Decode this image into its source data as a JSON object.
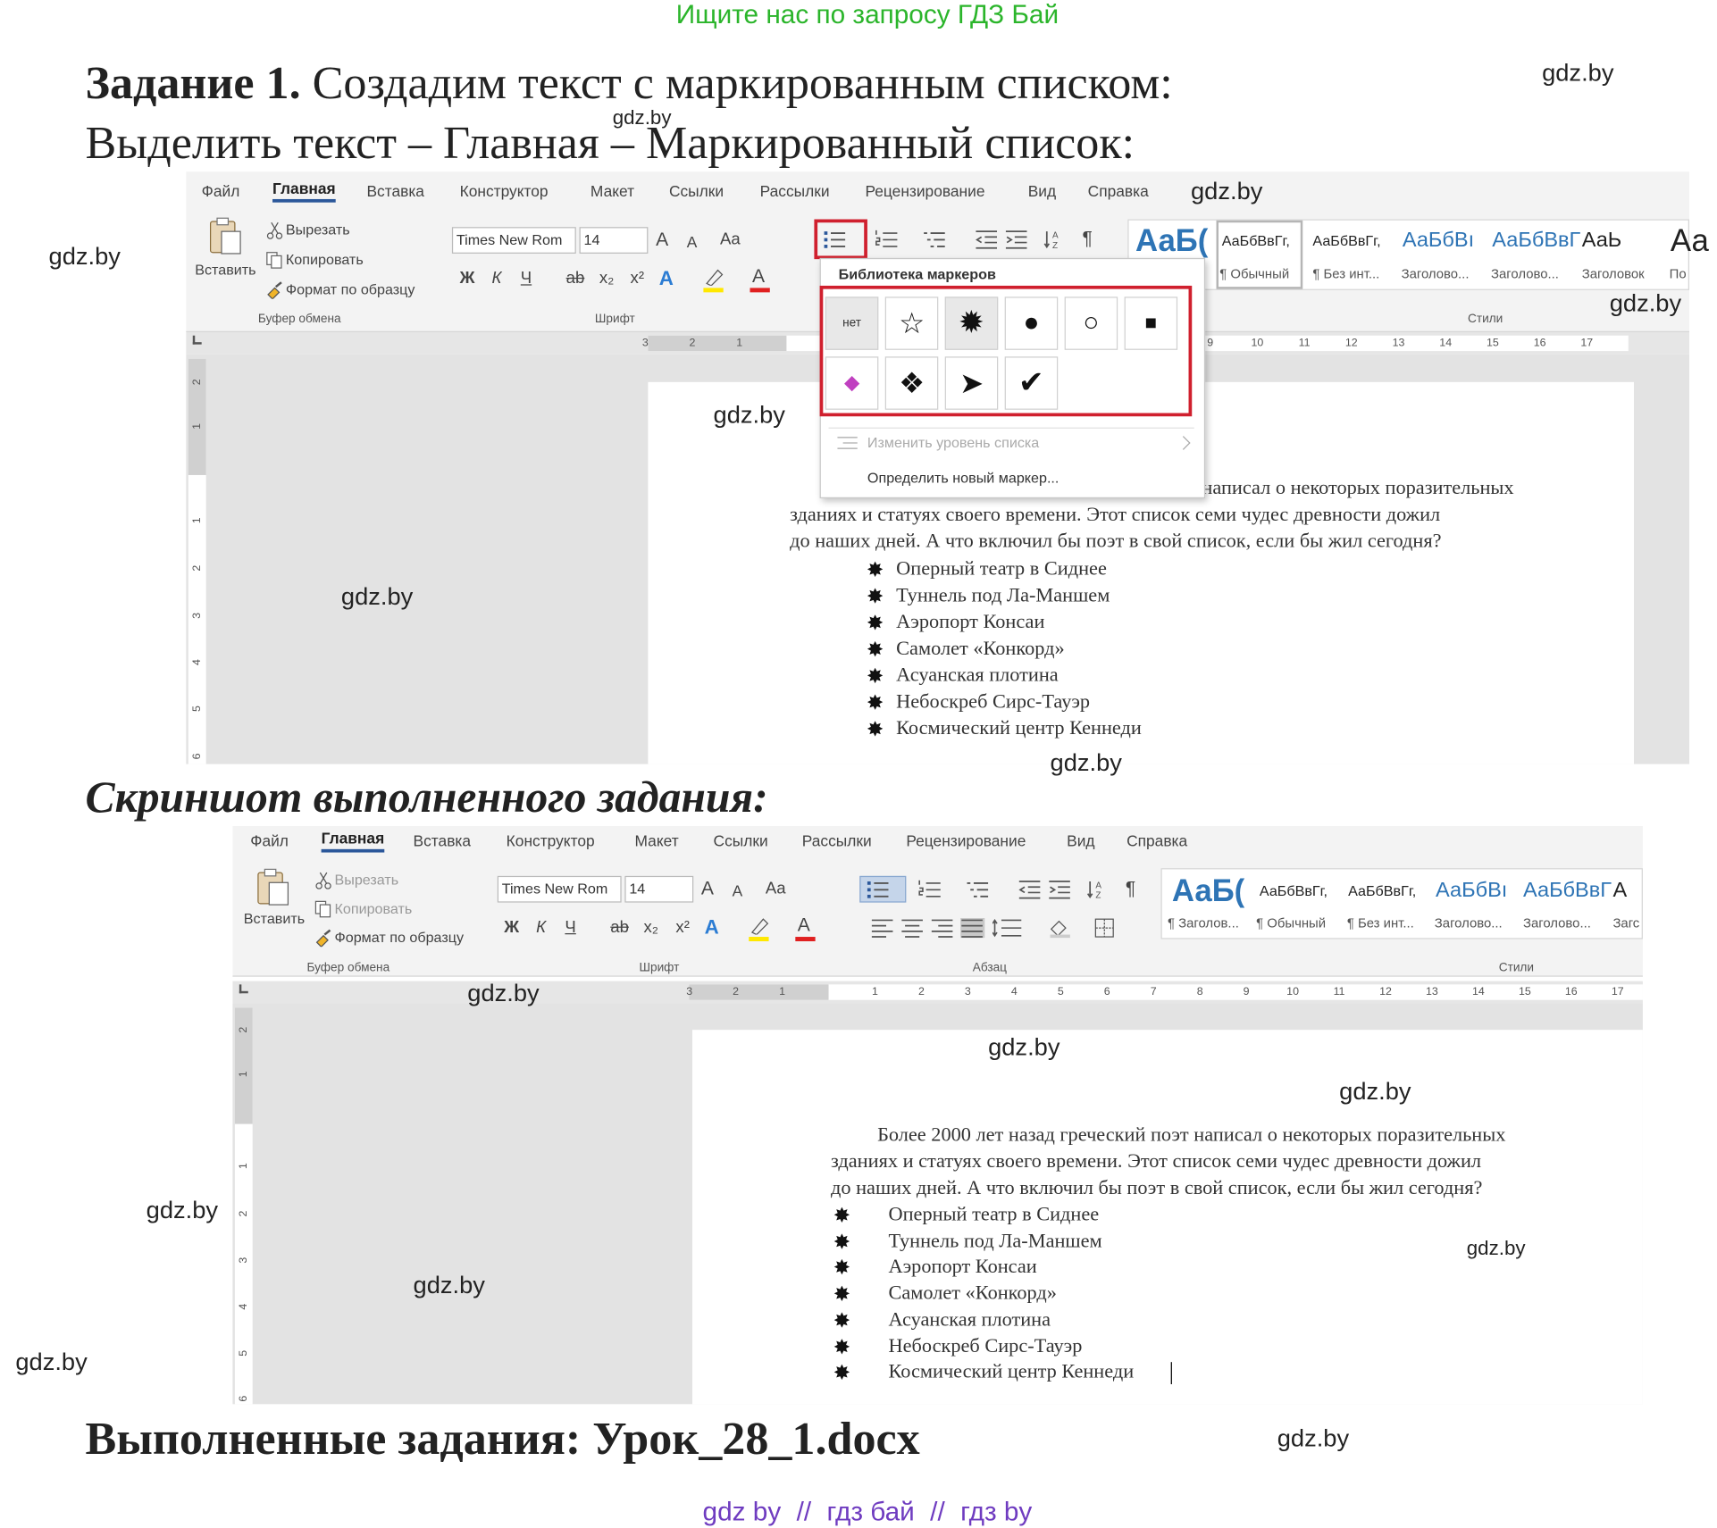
{
  "header": {
    "search_hint": "Ищите нас по запросу ГДЗ Бай"
  },
  "task": {
    "label": "Задание 1.",
    "text": "Создадим текст с маркированным списком:",
    "instruction": "Выделить текст – Главная – Маркированный список:"
  },
  "screenshot_1": {
    "tabs": [
      "Файл",
      "Главная",
      "Вставка",
      "Конструктор",
      "Макет",
      "Ссылки",
      "Рассылки",
      "Рецензирование",
      "Вид",
      "Справка"
    ],
    "clipboard": {
      "paste": "Вставить",
      "cut": "Вырезать",
      "copy": "Копировать",
      "format_painter": "Формат по образцу"
    },
    "font_name": "Times New Rom",
    "font_size": "14",
    "font_buttons": [
      "Ж",
      "К",
      "Ч",
      "ab",
      "x₂",
      "x²"
    ],
    "size_buttons": [
      "A",
      "A"
    ],
    "case_button": "Aa",
    "color_buttons": [
      "A",
      "A"
    ],
    "show_marks": "¶",
    "groups": [
      "Буфер обмена",
      "Шрифт",
      "Стили"
    ],
    "style_samples": [
      "АаБ(",
      "АаБбВвГг,",
      "АаБбВвГг,",
      "АаБбВı",
      "АаБбВвГ",
      "АаЬ",
      "Аа"
    ],
    "style_labels": [
      "¶ Обычный",
      "¶ Без инт...",
      "Заголово...",
      "Заголово...",
      "Заголовок",
      "По"
    ],
    "bullet_menu": {
      "title": "Библиотека маркеров",
      "none": "нет",
      "symbols": [
        "☆",
        "✹",
        "●",
        "○",
        "■",
        "◆",
        "❖",
        "➤",
        "✔"
      ],
      "change_level": "Изменить уровень списка",
      "define_new": "Определить новый маркер..."
    },
    "ruler": [
      "3",
      "2",
      "1",
      "9",
      "10",
      "11",
      "12",
      "13",
      "14",
      "15",
      "16",
      "17"
    ],
    "vruler": [
      "2",
      "1",
      "1",
      "2",
      "3",
      "4",
      "5",
      "6"
    ],
    "paragraph": [
      "написал о некоторых поразительных",
      "зданиях и статуях своего времени. Этот список семи чудес древности дожил",
      "до наших дней. А что включил бы поэт в свой список, если бы жил сегодня?"
    ],
    "list": [
      "Оперный театр в Сиднее",
      "Туннель под Ла-Маншем",
      "Аэропорт Консаи",
      "Самолет «Конкорд»",
      "Асуанская плотина",
      "Небоскреб Сирс-Тауэр",
      "Космический центр Кеннеди"
    ]
  },
  "caption": "Скриншот выполненного задания:",
  "screenshot_2": {
    "tabs": [
      "Файл",
      "Главная",
      "Вставка",
      "Конструктор",
      "Макет",
      "Ссылки",
      "Рассылки",
      "Рецензирование",
      "Вид",
      "Справка"
    ],
    "clipboard": {
      "paste": "Вставить",
      "cut": "Вырезать",
      "copy": "Копировать",
      "format_painter": "Формат по образцу"
    },
    "font_name": "Times New Rom",
    "font_size": "14",
    "font_buttons": [
      "Ж",
      "К",
      "Ч",
      "ab",
      "x₂",
      "x²"
    ],
    "size_buttons": [
      "A",
      "A"
    ],
    "case_button": "Aa",
    "color_buttons": [
      "A",
      "A"
    ],
    "show_marks": "¶",
    "groups": [
      "Буфер обмена",
      "Шрифт",
      "Абзац",
      "Стили"
    ],
    "style_samples": [
      "АаБ(",
      "АаБбВвГг,",
      "АаБбВвГг,",
      "АаБбВı",
      "АаБбВвГ",
      "А"
    ],
    "style_labels": [
      "¶ Заголов...",
      "¶ Обычный",
      "¶ Без инт...",
      "Заголово...",
      "Заголово...",
      "Загс"
    ],
    "ruler": [
      "3",
      "2",
      "1",
      "1",
      "2",
      "3",
      "4",
      "5",
      "6",
      "7",
      "8",
      "9",
      "10",
      "11",
      "12",
      "13",
      "14",
      "15",
      "16",
      "17"
    ],
    "vruler": [
      "2",
      "1",
      "1",
      "2",
      "3",
      "4",
      "5",
      "6"
    ],
    "paragraph": [
      "Более 2000 лет назад греческий поэт написал о некоторых поразительных",
      "зданиях и статуях своего времени. Этот список семи чудес древности дожил",
      "до наших дней. А что включил бы поэт в свой список, если бы жил сегодня?"
    ],
    "list": [
      "Оперный театр в Сиднее",
      "Туннель под Ла-Маншем",
      "Аэропорт Консаи",
      "Самолет «Конкорд»",
      "Асуанская плотина",
      "Небоскреб Сирс-Тауэр",
      "Космический центр Кеннеди"
    ]
  },
  "footer": {
    "title": "Выполненные задания: Урок_28_1.docx",
    "links": [
      "gdz by",
      "гдз бай",
      "гдз by"
    ],
    "separator": "//"
  },
  "watermarks": [
    "gdz.by",
    "gdz.by",
    "gdz.by",
    "gdz.by",
    "gdz.by",
    "gdz.by",
    "gdz.by",
    "gdz.by",
    "gdz.by",
    "gdz.by",
    "gdz.by",
    "gdz.by",
    "gdz.by",
    "gdz.by",
    "gdz.by",
    "gdz.by"
  ]
}
